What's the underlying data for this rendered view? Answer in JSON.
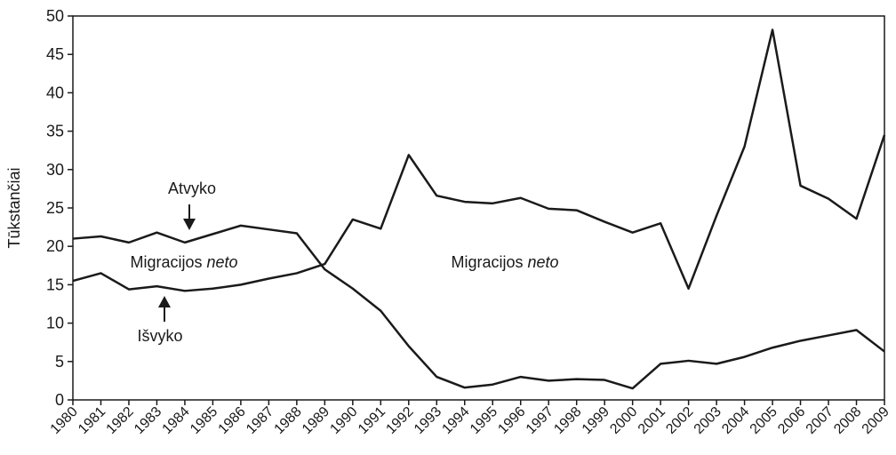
{
  "chart_data": {
    "type": "line",
    "ylabel": "Tūkstančiai",
    "x": [
      1980,
      1981,
      1982,
      1983,
      1984,
      1985,
      1986,
      1987,
      1988,
      1989,
      1990,
      1991,
      1992,
      1993,
      1994,
      1995,
      1996,
      1997,
      1998,
      1999,
      2000,
      2001,
      2002,
      2003,
      2004,
      2005,
      2006,
      2007,
      2008,
      2009
    ],
    "series": [
      {
        "name": "Atvyko",
        "color": "#1a1a1a",
        "values": [
          21.0,
          21.3,
          20.5,
          21.8,
          20.5,
          21.6,
          22.7,
          22.2,
          21.7,
          17.0,
          14.5,
          11.6,
          7.0,
          3.0,
          1.6,
          2.0,
          3.0,
          2.5,
          2.7,
          2.6,
          1.5,
          4.7,
          5.1,
          4.7,
          5.6,
          6.8,
          7.7,
          8.4,
          9.1,
          6.3
        ]
      },
      {
        "name": "Išvyko",
        "color": "#1a1a1a",
        "values": [
          15.5,
          16.5,
          14.4,
          14.8,
          14.2,
          14.5,
          15.0,
          15.8,
          16.5,
          17.7,
          23.5,
          22.3,
          31.9,
          26.6,
          25.8,
          25.6,
          26.3,
          24.9,
          24.7,
          23.2,
          21.8,
          23.0,
          14.5,
          24.0,
          33.0,
          48.2,
          27.9,
          26.2,
          23.6,
          34.5
        ]
      }
    ],
    "annotations": [
      {
        "text": "Migracijos",
        "emphasis": "neto"
      },
      {
        "text": "Migracijos",
        "emphasis": "neto"
      }
    ],
    "xlim": [
      1980,
      2009
    ],
    "ylim": [
      0,
      50
    ],
    "yticks": [
      0,
      5,
      10,
      15,
      20,
      25,
      30,
      35,
      40,
      45,
      50
    ]
  }
}
